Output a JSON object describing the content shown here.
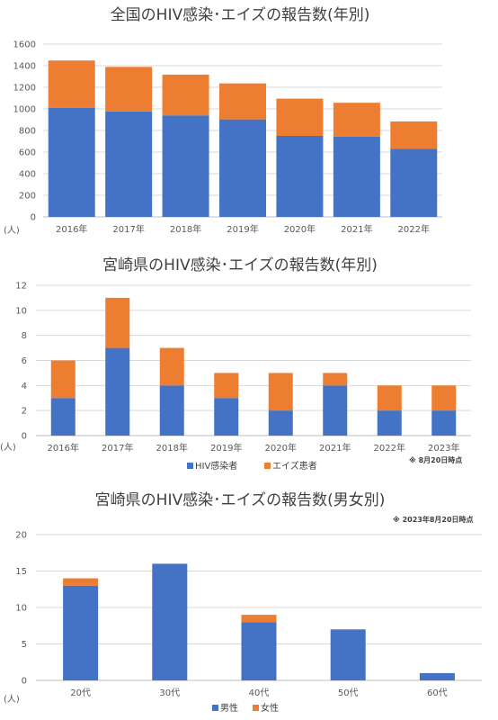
{
  "chart_data": [
    {
      "type": "bar",
      "stacked": true,
      "title": "全国のHIV感染･エイズの報告数(年別)",
      "unit_label": "(人)",
      "categories": [
        "2016年",
        "2017年",
        "2018年",
        "2019年",
        "2020年",
        "2021年",
        "2022年"
      ],
      "series": [
        {
          "values": [
            1011,
            976,
            940,
            903,
            750,
            742,
            632
          ],
          "color": "#4472c4"
        },
        {
          "values": [
            437,
            413,
            377,
            333,
            345,
            315,
            252
          ],
          "color": "#ed7d31"
        }
      ],
      "ylim": [
        0,
        1600
      ],
      "yticks": [
        0,
        200,
        400,
        600,
        800,
        1000,
        1200,
        1400,
        1600
      ],
      "grid": true,
      "legend": "none"
    },
    {
      "type": "bar",
      "stacked": true,
      "title": "宮崎県のHIV感染･エイズの報告数(年別)",
      "unit_label": "(人)",
      "categories": [
        "2016年",
        "2017年",
        "2018年",
        "2019年",
        "2020年",
        "2021年",
        "2022年",
        "2023年"
      ],
      "series": [
        {
          "name": "HIV感染者",
          "values": [
            3,
            7,
            4,
            3,
            2,
            4,
            2,
            2
          ],
          "color": "#4472c4"
        },
        {
          "name": "エイズ患者",
          "values": [
            3,
            4,
            3,
            2,
            3,
            1,
            2,
            2
          ],
          "color": "#ed7d31"
        }
      ],
      "ylim": [
        0,
        12
      ],
      "yticks": [
        0,
        2,
        4,
        6,
        8,
        10,
        12
      ],
      "grid": true,
      "legend": "bottom",
      "note": "※ 8月20日時点"
    },
    {
      "type": "bar",
      "stacked": true,
      "title": "宮崎県のHIV感染･エイズの報告数(男女別)",
      "unit_label": "(人)",
      "categories": [
        "20代",
        "30代",
        "40代",
        "50代",
        "60代"
      ],
      "series": [
        {
          "name": "男性",
          "values": [
            13,
            16,
            8,
            7,
            1
          ],
          "color": "#4472c4"
        },
        {
          "name": "女性",
          "values": [
            1,
            0,
            1,
            0,
            0
          ],
          "color": "#ed7d31"
        }
      ],
      "ylim": [
        0,
        20
      ],
      "yticks": [
        0,
        5,
        10,
        15,
        20
      ],
      "grid": true,
      "legend": "bottom",
      "note": "※ 2023年8月20日時点"
    }
  ]
}
